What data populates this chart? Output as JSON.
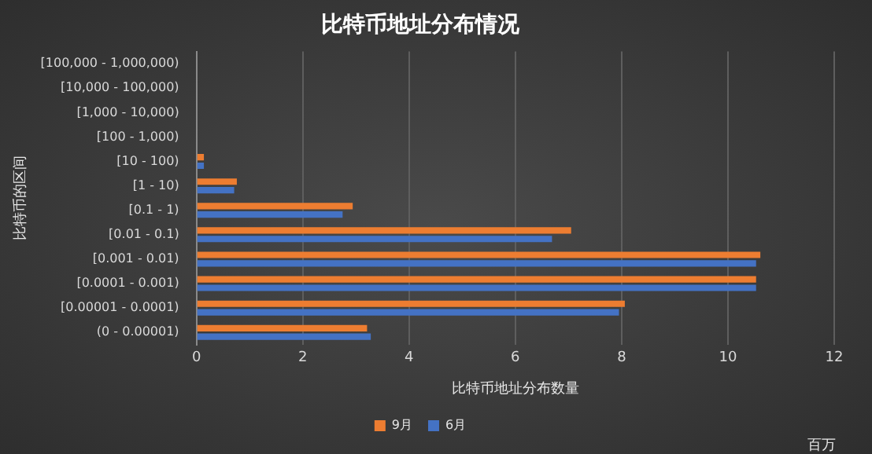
{
  "chart_data": {
    "type": "bar",
    "orientation": "horizontal",
    "title": "比特币地址分布情况",
    "xlabel": "比特币地址分布数量",
    "ylabel": "比特币的区间",
    "annotations": [
      "百万"
    ],
    "categories": [
      "[100,000 - 1,000,000)",
      "[10,000 - 100,000)",
      "[1,000 - 10,000)",
      "[100 - 1,000)",
      "[10 - 100)",
      "[1 - 10)",
      "[0.1 - 1)",
      "[0.01 - 0.1)",
      "[0.001 - 0.01)",
      "[0.0001 - 0.001)",
      "[0.00001 - 0.0001)",
      "(0 - 0.00001)"
    ],
    "series": [
      {
        "name": "9月",
        "color": "#ed7d31",
        "values": [
          0,
          0,
          0,
          0,
          0.14,
          0.76,
          2.94,
          7.05,
          10.61,
          10.53,
          8.06,
          3.21
        ]
      },
      {
        "name": "6月",
        "color": "#4472c4",
        "values": [
          0,
          0,
          0,
          0,
          0.14,
          0.71,
          2.75,
          6.69,
          10.53,
          10.53,
          7.95,
          3.28
        ]
      }
    ],
    "xlim": [
      0,
      12
    ],
    "xticks": [
      0,
      2,
      4,
      6,
      8,
      10,
      12
    ],
    "grid": "x",
    "legend": "bottom"
  }
}
